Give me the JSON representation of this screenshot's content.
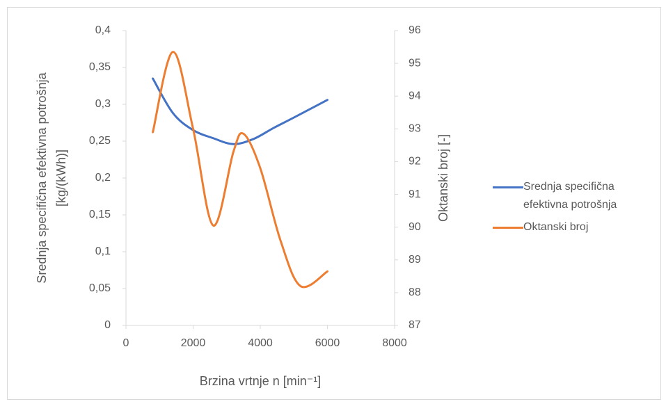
{
  "chart_data": {
    "type": "line",
    "xlabel": "Brzina vrtnje n [min⁻¹]",
    "ylabel": "Srednja specifična efektivna potrošnja [kg/(kWh)]",
    "y2label": "Oktanski broj [-]",
    "xlim": [
      0,
      8000
    ],
    "xticks": [
      0,
      2000,
      4000,
      6000,
      8000
    ],
    "ylim": [
      0,
      0.4
    ],
    "yticks": [
      0,
      {
        "value": 0.05,
        "label": "0,05"
      },
      {
        "value": 0.1,
        "label": "0,1"
      },
      {
        "value": 0.15,
        "label": "0,15"
      },
      {
        "value": 0.2,
        "label": "0,2"
      },
      {
        "value": 0.25,
        "label": "0,25"
      },
      {
        "value": 0.3,
        "label": "0,3"
      },
      {
        "value": 0.35,
        "label": "0,35"
      },
      {
        "value": 0.4,
        "label": "0,4"
      }
    ],
    "y2lim": [
      87,
      96
    ],
    "y2ticks": [
      87,
      88,
      89,
      90,
      91,
      92,
      93,
      94,
      95,
      96
    ],
    "legend": "right",
    "smooth": true,
    "series": [
      {
        "name": "Srednja specifična efektivna potrošnja",
        "color": "#4472c4",
        "x": [
          800,
          1400,
          2000,
          2600,
          3200,
          3800,
          4400,
          5000,
          6000
        ],
        "values": [
          0.335,
          0.288,
          0.265,
          0.254,
          0.246,
          0.253,
          0.268,
          0.282,
          0.306
        ]
      },
      {
        "name": "Oktanski broj",
        "color": "#ed7d31",
        "axis": "y2",
        "x": [
          800,
          1400,
          2000,
          2600,
          3200,
          3500,
          4000,
          4600,
          5200,
          6000
        ],
        "values": [
          92.9,
          95.35,
          93,
          90.05,
          92.3,
          92.85,
          91.8,
          89.6,
          88.2,
          88.65
        ]
      }
    ]
  }
}
